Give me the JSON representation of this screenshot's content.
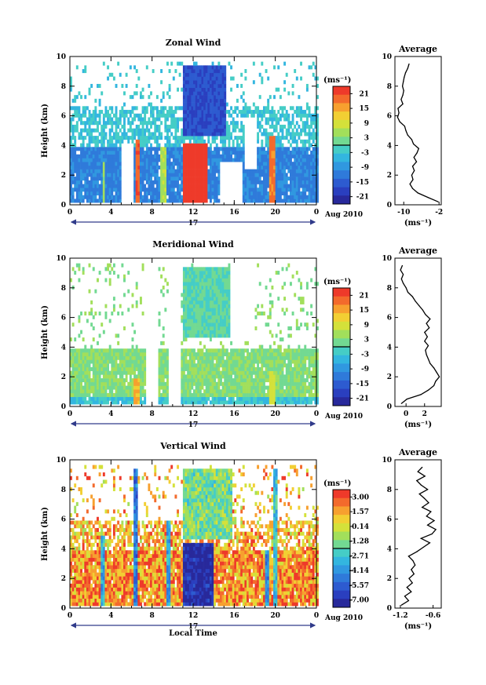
{
  "chart_data": [
    {
      "type": "heatmap",
      "title": "Zonal Wind",
      "ylabel": "Height (km)",
      "xticks": [
        "0",
        "4",
        "8",
        "12",
        "16",
        "20",
        "0"
      ],
      "yticks": [
        "0",
        "2",
        "4",
        "6",
        "8",
        "10"
      ],
      "xlim": [
        0,
        24
      ],
      "ylim": [
        0,
        10
      ],
      "date_day": "17",
      "date_label": "Aug 2010",
      "colorbar": {
        "unit": "(ms⁻¹)",
        "ticks": [
          "21",
          "15",
          "9",
          "3",
          "-3",
          "-9",
          "-15",
          "-21"
        ],
        "range": [
          -24,
          24
        ],
        "colors": [
          "#ee3a2a",
          "#f36a2c",
          "#f7a02f",
          "#f2cf33",
          "#d4e13a",
          "#a2df5b",
          "#72d992",
          "#45cdc6",
          "#33b6df",
          "#3098e0",
          "#2f7ada",
          "#2d5bd0",
          "#2a3fbf",
          "#28299b"
        ]
      },
      "field": {
        "base": -3,
        "low_rows": [
          0,
          4
        ],
        "low_offset": -8,
        "cloud_top": 6.6,
        "bands": [
          {
            "t0": 11.0,
            "t1": 13.4,
            "v": 24,
            "z1": 4.2
          },
          {
            "t0": 6.4,
            "t1": 6.9,
            "v": 20,
            "z1": 4.4
          },
          {
            "t0": 19.3,
            "t1": 19.9,
            "v": 18,
            "z1": 4.6
          },
          {
            "t0": 8.8,
            "t1": 9.3,
            "v": 6,
            "z1": 4.0
          },
          {
            "t0": 3.2,
            "t1": 3.5,
            "v": 4,
            "z1": 3.0
          },
          {
            "t0": 11.0,
            "t1": 15.2,
            "v": -17,
            "z0": 4.6,
            "z1": 9.5
          }
        ],
        "gaps": [
          [
            5.0,
            6.2,
            0,
            4.2
          ],
          [
            14.5,
            16.8,
            0,
            3.0
          ],
          [
            17.0,
            18.2,
            2.5,
            6.0
          ]
        ]
      },
      "profile": {
        "title": "Average",
        "xlabel": "(ms⁻¹)",
        "xticks": [
          "-10",
          "-2"
        ],
        "xlim": [
          -12,
          -1.5
        ],
        "heights": [
          0.2,
          0.5,
          0.8,
          1.1,
          1.4,
          1.7,
          2.0,
          2.3,
          2.6,
          2.9,
          3.2,
          3.5,
          3.8,
          4.1,
          4.4,
          4.7,
          5.0,
          5.3,
          5.6,
          5.9,
          6.2,
          6.5,
          6.8,
          7.1,
          7.4,
          7.7,
          8.0,
          8.3,
          8.6,
          8.9,
          9.2,
          9.5
        ],
        "values": [
          -2.2,
          -4.5,
          -6.8,
          -8.0,
          -8.6,
          -7.9,
          -8.2,
          -7.6,
          -8.0,
          -7.1,
          -7.7,
          -7.0,
          -6.6,
          -7.8,
          -8.2,
          -9.1,
          -9.5,
          -9.8,
          -10.9,
          -11.4,
          -11.1,
          -11.3,
          -10.2,
          -10.6,
          -10.2,
          -10.0,
          -10.3,
          -10.1,
          -9.9,
          -9.6,
          -9.1,
          -8.8
        ]
      }
    },
    {
      "type": "heatmap",
      "title": "Meridional Wind",
      "ylabel": "Height (km)",
      "xticks": [
        "0",
        "4",
        "8",
        "12",
        "16",
        "20",
        "0"
      ],
      "yticks": [
        "0",
        "2",
        "4",
        "6",
        "8",
        "10"
      ],
      "xlim": [
        0,
        24
      ],
      "ylim": [
        0,
        10
      ],
      "date_day": "17",
      "date_label": "Aug 2010",
      "colorbar": {
        "unit": "(ms⁻¹)",
        "ticks": [
          "21",
          "15",
          "9",
          "3",
          "-3",
          "-9",
          "-15",
          "-21"
        ],
        "range": [
          -24,
          24
        ],
        "colors": [
          "#ee3a2a",
          "#f36a2c",
          "#f7a02f",
          "#f2cf33",
          "#d4e13a",
          "#a2df5b",
          "#72d992",
          "#45cdc6",
          "#33b6df",
          "#3098e0",
          "#2f7ada",
          "#2d5bd0",
          "#2a3fbf",
          "#28299b"
        ]
      },
      "field": {
        "base": 3,
        "low_rows": [
          0,
          0.7
        ],
        "low_offset": -6,
        "cloud_top": 4.0,
        "bands": [
          {
            "t0": 6.3,
            "t1": 6.8,
            "v": 14,
            "z1": 2.0
          },
          {
            "t0": 11.0,
            "t1": 15.5,
            "v": 0,
            "z0": 4.6,
            "z1": 9.5
          },
          {
            "t0": 19.4,
            "t1": 20.0,
            "v": 8,
            "z1": 2.5
          }
        ],
        "gaps": [
          [
            7.5,
            8.6,
            0,
            10
          ],
          [
            9.6,
            10.8,
            0,
            10
          ],
          [
            15.6,
            18.0,
            4.5,
            10
          ]
        ]
      },
      "profile": {
        "title": "Average",
        "xlabel": "(ms⁻¹)",
        "xticks": [
          "0",
          "2"
        ],
        "xlim": [
          -1.2,
          3.8
        ],
        "heights": [
          0.2,
          0.5,
          0.8,
          1.1,
          1.4,
          1.7,
          2.0,
          2.3,
          2.6,
          2.9,
          3.2,
          3.5,
          3.8,
          4.1,
          4.4,
          4.7,
          5.0,
          5.3,
          5.6,
          5.9,
          6.2,
          6.5,
          6.8,
          7.1,
          7.4,
          7.7,
          8.0,
          8.3,
          8.6,
          8.9,
          9.2,
          9.5
        ],
        "values": [
          -0.5,
          0.1,
          1.6,
          2.4,
          3.0,
          3.2,
          3.6,
          3.3,
          3.0,
          2.6,
          2.4,
          2.2,
          2.1,
          2.4,
          2.0,
          2.3,
          2.0,
          2.5,
          2.2,
          2.6,
          2.1,
          1.8,
          1.4,
          1.0,
          0.7,
          0.2,
          0.0,
          -0.3,
          -0.5,
          -0.3,
          -0.6,
          -0.4
        ]
      }
    },
    {
      "type": "heatmap",
      "title": "Vertical Wind",
      "ylabel": "Height (km)",
      "xlabel": "Local Time",
      "xticks": [
        "0",
        "4",
        "8",
        "12",
        "16",
        "20",
        "0"
      ],
      "yticks": [
        "0",
        "2",
        "4",
        "6",
        "8",
        "10"
      ],
      "xlim": [
        0,
        24
      ],
      "ylim": [
        0,
        10
      ],
      "date_day": "17",
      "date_label": "Aug 2010",
      "colorbar": {
        "unit": "(ms⁻¹)",
        "ticks": [
          "3.00",
          "1.57",
          "0.14",
          "-1.28",
          "-2.71",
          "-4.14",
          "-5.57",
          "-7.00"
        ],
        "range": [
          -8,
          3.7
        ],
        "colors": [
          "#ee3a2a",
          "#f36a2c",
          "#f7a02f",
          "#f2cf33",
          "#d4e13a",
          "#a2df5b",
          "#72d992",
          "#45cdc6",
          "#33b6df",
          "#3098e0",
          "#2f7ada",
          "#2d5bd0",
          "#2a3fbf",
          "#28299b"
        ]
      },
      "field": {
        "base": 1.2,
        "low_rows": [
          0,
          4
        ],
        "low_offset": 0.6,
        "cloud_top": 6.0,
        "bands": [
          {
            "t0": 11.0,
            "t1": 14.0,
            "v": -7.5,
            "z1": 4.4
          },
          {
            "t0": 11.0,
            "t1": 15.8,
            "v": -1.6,
            "z0": 4.6,
            "z1": 9.5
          },
          {
            "t0": 3.1,
            "t1": 3.4,
            "v": -3.5,
            "z1": 5.0
          },
          {
            "t0": 6.3,
            "t1": 6.7,
            "v": -5.0,
            "z1": 9.5
          },
          {
            "t0": 9.3,
            "t1": 9.7,
            "v": -4.0,
            "z1": 6.0
          },
          {
            "t0": 19.0,
            "t1": 19.4,
            "v": -4.5,
            "z1": 4.0
          },
          {
            "t0": 19.8,
            "t1": 20.1,
            "v": -3.0,
            "z1": 9.5
          }
        ],
        "gaps": []
      },
      "profile": {
        "title": "Average",
        "xlabel": "(ms⁻¹)",
        "xticks": [
          "-1.2",
          "-0.6"
        ],
        "xlim": [
          -1.3,
          -0.45
        ],
        "heights": [
          0.2,
          0.5,
          0.8,
          1.1,
          1.4,
          1.7,
          2.0,
          2.3,
          2.6,
          2.9,
          3.2,
          3.5,
          3.8,
          4.1,
          4.4,
          4.7,
          5.0,
          5.3,
          5.6,
          5.9,
          6.2,
          6.5,
          6.8,
          7.1,
          7.4,
          7.7,
          8.0,
          8.3,
          8.6,
          8.9,
          9.2,
          9.5
        ],
        "values": [
          -1.18,
          -1.05,
          -1.12,
          -1.0,
          -1.08,
          -0.98,
          -1.04,
          -0.95,
          -1.0,
          -0.93,
          -0.97,
          -1.05,
          -0.9,
          -0.78,
          -0.66,
          -0.82,
          -0.62,
          -0.55,
          -0.7,
          -0.58,
          -0.72,
          -0.64,
          -0.8,
          -0.68,
          -0.76,
          -0.85,
          -0.7,
          -0.82,
          -0.9,
          -0.75,
          -0.88,
          -0.8
        ]
      }
    }
  ]
}
